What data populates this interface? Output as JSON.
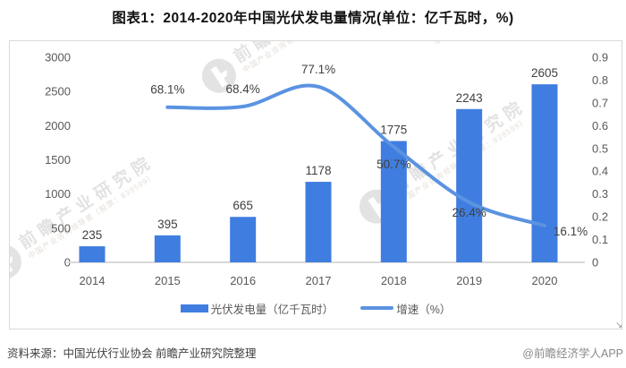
{
  "title": "图表1：2014-2020年中国光伏发电量情况(单位：亿千瓦时，%)",
  "footer": {
    "source": "资料来源：中国光伏行业协会 前瞻产业研究院整理",
    "credit": "@前瞻经济学人APP"
  },
  "watermark": {
    "big": "前瞻产业研究院",
    "small": "中国产业咨询领导者（股票：839599）"
  },
  "colors": {
    "bar": "#3f7ee0",
    "line": "#5b93e1",
    "axis_line": "#d9d9d9",
    "data_label": "#404040",
    "tick_label": "#595959"
  },
  "chart_data": {
    "type": "bar",
    "categories": [
      "2014",
      "2015",
      "2016",
      "2017",
      "2018",
      "2019",
      "2020"
    ],
    "series": [
      {
        "name": "光伏发电量（亿千瓦时）",
        "type": "bar",
        "axis": "left",
        "values": [
          235,
          395,
          665,
          1178,
          1775,
          2243,
          2605
        ],
        "labels": [
          "235",
          "395",
          "665",
          "1178",
          "1775",
          "2243",
          "2605"
        ]
      },
      {
        "name": "增速（%）",
        "type": "line",
        "axis": "right",
        "categories": [
          "2015",
          "2016",
          "2017",
          "2018",
          "2019",
          "2020"
        ],
        "values": [
          0.681,
          0.684,
          0.771,
          0.507,
          0.264,
          0.161
        ],
        "labels": [
          "68.1%",
          "68.4%",
          "77.1%",
          "50.7%",
          "26.4%",
          "16.1%"
        ]
      }
    ],
    "left_axis": {
      "min": 0,
      "max": 3000,
      "tick_labels": [
        "0",
        "500",
        "1000",
        "1500",
        "2000",
        "2500",
        "3000"
      ]
    },
    "right_axis": {
      "min": 0,
      "max": 0.9,
      "tick_labels": [
        "0",
        "0.1",
        "0.2",
        "0.3",
        "0.4",
        "0.5",
        "0.6",
        "0.7",
        "0.8",
        "0.9"
      ]
    },
    "legend_position": "bottom",
    "grid": false
  }
}
